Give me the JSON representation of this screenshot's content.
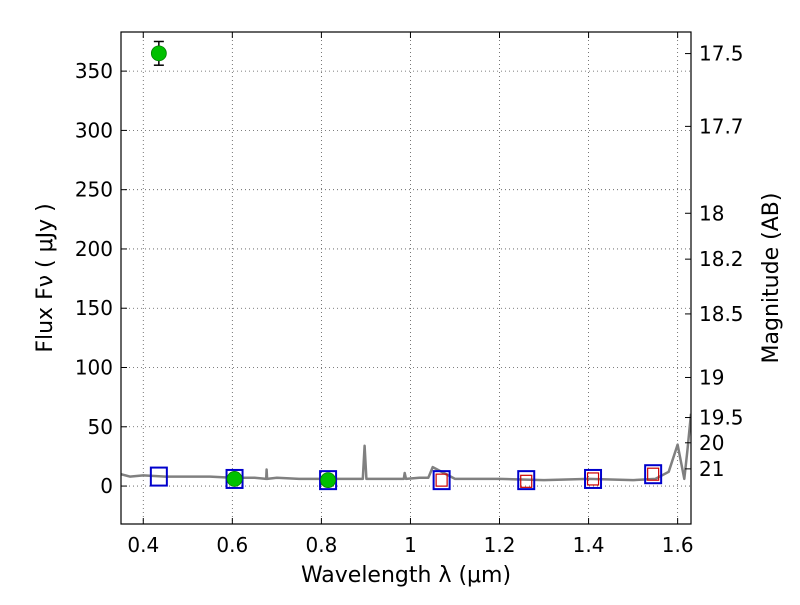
{
  "chart_data": {
    "type": "scatter",
    "xlabel": "Wavelength  λ (μm)",
    "ylabel": "Flux  Fν  ( μJy )",
    "y2label": "Magnitude (AB)",
    "xlim": [
      0.35,
      1.63
    ],
    "ylim": [
      -32,
      383
    ],
    "grid": true,
    "x_ticks": [
      0.4,
      0.6,
      0.8,
      1.0,
      1.2,
      1.4,
      1.6
    ],
    "x_tick_labels": [
      "0.4",
      "0.6",
      "0.8",
      "1",
      "1.2",
      "1.4",
      "1.6"
    ],
    "y_ticks": [
      0,
      50,
      100,
      150,
      200,
      250,
      300,
      350
    ],
    "y_tick_labels": [
      "0",
      "50",
      "100",
      "150",
      "200",
      "250",
      "300",
      "350"
    ],
    "mag_ticks": [
      {
        "label": "17.5",
        "flux": 364.8
      },
      {
        "label": "17.7",
        "flux": 303.4
      },
      {
        "label": "18",
        "flux": 230.1
      },
      {
        "label": "18.2",
        "flux": 191.4
      },
      {
        "label": "18.5",
        "flux": 145.2
      },
      {
        "label": "19",
        "flux": 91.6
      },
      {
        "label": "19.5",
        "flux": 57.8
      },
      {
        "label": "20",
        "flux": 36.5
      },
      {
        "label": "21",
        "flux": 14.5
      }
    ],
    "colors": {
      "spectrum": "#808080",
      "observed": "#00c000",
      "model_box": "#0000cc",
      "model_small": "#cc0000",
      "grid": "#555555",
      "errorbar": "#000000"
    },
    "series": [
      {
        "kind": "line",
        "x": [
          0.35,
          0.37,
          0.4,
          0.45,
          0.5,
          0.55,
          0.6,
          0.65,
          0.676,
          0.677,
          0.678,
          0.7,
          0.75,
          0.8,
          0.85,
          0.893,
          0.897,
          0.901,
          0.95,
          0.985,
          0.987,
          0.99,
          1.02,
          1.04,
          1.05,
          1.1,
          1.2,
          1.3,
          1.4,
          1.5,
          1.55,
          1.58,
          1.6,
          1.615,
          1.622,
          1.63
        ],
        "y": [
          10,
          8,
          9,
          8,
          8,
          8,
          7,
          7,
          6,
          14,
          6,
          7,
          6,
          6,
          6,
          6,
          34,
          6,
          6,
          6,
          11,
          6,
          7,
          7,
          16,
          6,
          6,
          5,
          6,
          5,
          6,
          12,
          35,
          6,
          30,
          61
        ]
      },
      {
        "kind": "box",
        "x": [
          0.435,
          0.605,
          0.815,
          1.07,
          1.26,
          1.41,
          1.545
        ],
        "y": [
          8,
          6,
          5,
          5,
          5,
          6,
          10
        ]
      },
      {
        "kind": "small-box",
        "x": [
          1.07,
          1.26,
          1.41,
          1.545
        ],
        "y": [
          5,
          4,
          6,
          10
        ]
      },
      {
        "kind": "observed",
        "x": [
          0.435,
          0.605,
          0.815
        ],
        "y": [
          365,
          6,
          5
        ],
        "yerr": [
          10,
          1.5,
          1.5
        ]
      }
    ]
  }
}
